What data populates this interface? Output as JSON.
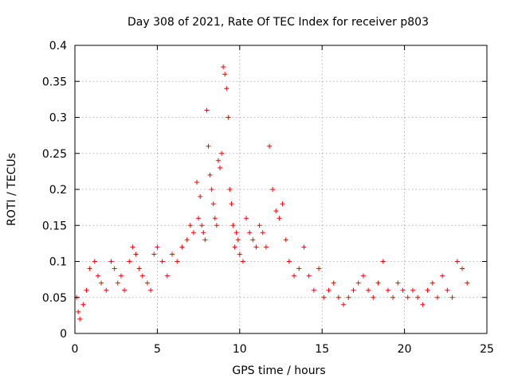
{
  "chart_data": {
    "type": "scatter",
    "title": "Day 308 of 2021, Rate Of TEC Index for receiver p803",
    "xlabel": "GPS time / hours",
    "ylabel": "ROTI / TECUs",
    "xlim": [
      0,
      25
    ],
    "ylim": [
      0,
      0.4
    ],
    "xticks": [
      0,
      5,
      10,
      15,
      20,
      25
    ],
    "yticks": [
      0,
      0.05,
      0.1,
      0.15,
      0.2,
      0.25,
      0.3,
      0.35,
      0.4
    ],
    "xtick_labels": [
      "0",
      "5",
      "10",
      "15",
      "20",
      "25"
    ],
    "ytick_labels": [
      "0",
      "0.05",
      "0.1",
      "0.15",
      "0.2",
      "0.25",
      "0.3",
      "0.35",
      "0.4"
    ],
    "grid": true,
    "marker": "plus",
    "colors": {
      "points": "#ff0000",
      "frame": "#000000",
      "grid": "#a0a0a0"
    },
    "series": [
      {
        "x": [
          0.1,
          0.2,
          0.3,
          0.5,
          0.7,
          0.9,
          1.2,
          1.4,
          1.6,
          1.9,
          2.2,
          2.4,
          2.6,
          2.8,
          3.0,
          3.3,
          3.5,
          3.7,
          3.9,
          4.1,
          4.4,
          4.6,
          4.8,
          5.0,
          5.3,
          5.6,
          5.9,
          6.2,
          6.5,
          6.8,
          7.0,
          7.2,
          7.4,
          7.5,
          7.6,
          7.7,
          7.8,
          7.9,
          8.0,
          8.1,
          8.2,
          8.3,
          8.4,
          8.5,
          8.6,
          8.7,
          8.8,
          8.9,
          9.0,
          9.1,
          9.2,
          9.3,
          9.4,
          9.5,
          9.6,
          9.7,
          9.8,
          9.9,
          10.0,
          10.2,
          10.4,
          10.6,
          10.8,
          11.0,
          11.2,
          11.4,
          11.6,
          11.8,
          12.0,
          12.2,
          12.4,
          12.6,
          12.8,
          13.0,
          13.3,
          13.6,
          13.9,
          14.2,
          14.5,
          14.8,
          15.1,
          15.4,
          15.7,
          16.0,
          16.3,
          16.6,
          16.9,
          17.2,
          17.5,
          17.8,
          18.1,
          18.4,
          18.7,
          19.0,
          19.3,
          19.6,
          19.9,
          20.2,
          20.5,
          20.8,
          21.1,
          21.4,
          21.7,
          22.0,
          22.3,
          22.6,
          22.9,
          23.2,
          23.5,
          23.8
        ],
        "y": [
          0.05,
          0.03,
          0.02,
          0.04,
          0.06,
          0.09,
          0.1,
          0.08,
          0.07,
          0.06,
          0.1,
          0.09,
          0.07,
          0.08,
          0.06,
          0.1,
          0.12,
          0.11,
          0.09,
          0.08,
          0.07,
          0.06,
          0.11,
          0.12,
          0.1,
          0.08,
          0.11,
          0.1,
          0.12,
          0.13,
          0.15,
          0.14,
          0.21,
          0.16,
          0.19,
          0.15,
          0.14,
          0.13,
          0.31,
          0.26,
          0.22,
          0.2,
          0.18,
          0.16,
          0.15,
          0.24,
          0.23,
          0.25,
          0.37,
          0.36,
          0.34,
          0.3,
          0.2,
          0.18,
          0.15,
          0.12,
          0.14,
          0.13,
          0.11,
          0.1,
          0.16,
          0.14,
          0.13,
          0.12,
          0.15,
          0.14,
          0.12,
          0.26,
          0.2,
          0.17,
          0.16,
          0.18,
          0.13,
          0.1,
          0.08,
          0.09,
          0.12,
          0.08,
          0.06,
          0.09,
          0.05,
          0.06,
          0.07,
          0.05,
          0.04,
          0.05,
          0.06,
          0.07,
          0.08,
          0.06,
          0.05,
          0.07,
          0.1,
          0.06,
          0.05,
          0.07,
          0.06,
          0.05,
          0.06,
          0.05,
          0.04,
          0.06,
          0.07,
          0.05,
          0.08,
          0.06,
          0.05,
          0.1,
          0.09,
          0.07
        ]
      }
    ]
  }
}
